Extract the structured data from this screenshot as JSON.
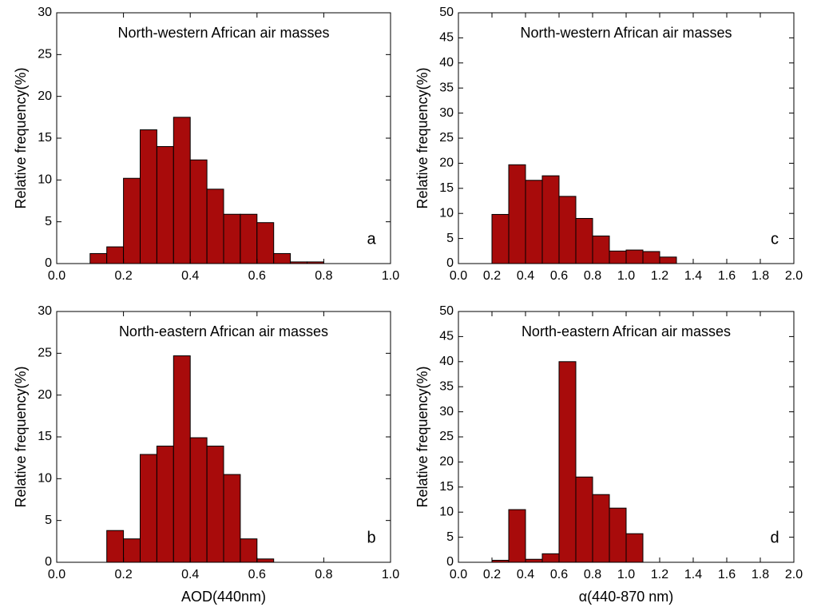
{
  "chart_data": [
    {
      "type": "histogram",
      "title": "North-western African air masses",
      "panel_label": "a",
      "ylabel": "Relative frequency(%)",
      "color": "#a80b0b",
      "bins": [
        0.1,
        0.15,
        0.2,
        0.25,
        0.3,
        0.35,
        0.4,
        0.45,
        0.5,
        0.55,
        0.6,
        0.65,
        0.7,
        0.75,
        0.8
      ],
      "values": [
        1.2,
        2,
        10.2,
        16,
        14,
        17.5,
        12.4,
        8.9,
        5.9,
        5.9,
        4.9,
        1.2,
        0.2,
        0.2
      ],
      "xlim": [
        0,
        1
      ],
      "ylim": [
        0,
        30
      ],
      "xticks": [
        {
          "value": 0,
          "label": "0.0"
        },
        0.2,
        0.4,
        0.6,
        0.8,
        {
          "value": 1,
          "label": "1.0"
        }
      ],
      "yticks": [
        0,
        5,
        10,
        15,
        20,
        25,
        30
      ]
    },
    {
      "type": "histogram",
      "title": "North-eastern African air masses",
      "panel_label": "b",
      "ylabel": "Relative frequency(%)",
      "xlabel": "AOD(440nm)",
      "color": "#a80b0b",
      "bins": [
        0.15,
        0.2,
        0.25,
        0.3,
        0.35,
        0.4,
        0.45,
        0.5,
        0.55,
        0.6,
        0.65
      ],
      "values": [
        3.8,
        2.8,
        12.9,
        13.9,
        24.7,
        14.9,
        13.9,
        10.5,
        2.8,
        0.4
      ],
      "xlim": [
        0,
        1
      ],
      "ylim": [
        0,
        30
      ],
      "xticks": [
        {
          "value": 0,
          "label": "0.0"
        },
        0.2,
        0.4,
        0.6,
        0.8,
        {
          "value": 1,
          "label": "1.0"
        }
      ],
      "yticks": [
        0,
        5,
        10,
        15,
        20,
        25,
        30
      ]
    },
    {
      "type": "histogram",
      "title": "North-western African air masses",
      "panel_label": "c",
      "ylabel": "Relative frequency(%)",
      "color": "#a80b0b",
      "bins": [
        0.2,
        0.3,
        0.4,
        0.5,
        0.6,
        0.7,
        0.8,
        0.9,
        1.0,
        1.1,
        1.2,
        1.3
      ],
      "values": [
        9.8,
        19.7,
        16.6,
        17.5,
        13.4,
        9,
        5.5,
        2.5,
        2.7,
        2.4,
        1.3
      ],
      "xlim": [
        0,
        2
      ],
      "ylim": [
        0,
        50
      ],
      "xticks": [
        {
          "value": 0,
          "label": "0.0"
        },
        0.2,
        0.4,
        0.6,
        0.8,
        {
          "value": 1,
          "label": "1.0"
        },
        1.2,
        1.4,
        1.6,
        1.8,
        {
          "value": 2,
          "label": "2.0"
        }
      ],
      "yticks": [
        0,
        5,
        10,
        15,
        20,
        25,
        30,
        35,
        40,
        45,
        50
      ]
    },
    {
      "type": "histogram",
      "title": "North-eastern African air masses",
      "panel_label": "d",
      "ylabel": "Relative frequency(%)",
      "xlabel": "α(440-870 nm)",
      "color": "#a80b0b",
      "bins": [
        0.2,
        0.3,
        0.4,
        0.5,
        0.6,
        0.7,
        0.8,
        0.9,
        1.0,
        1.1
      ],
      "values": [
        0.4,
        10.5,
        0.6,
        1.7,
        40,
        17,
        13.5,
        10.8,
        5.7
      ],
      "xlim": [
        0,
        2
      ],
      "ylim": [
        0,
        50
      ],
      "xticks": [
        {
          "value": 0,
          "label": "0.0"
        },
        0.2,
        0.4,
        0.6,
        0.8,
        {
          "value": 1,
          "label": "1.0"
        },
        1.2,
        1.4,
        1.6,
        1.8,
        {
          "value": 2,
          "label": "2.0"
        }
      ],
      "yticks": [
        0,
        5,
        10,
        15,
        20,
        25,
        30,
        35,
        40,
        45,
        50
      ]
    }
  ]
}
